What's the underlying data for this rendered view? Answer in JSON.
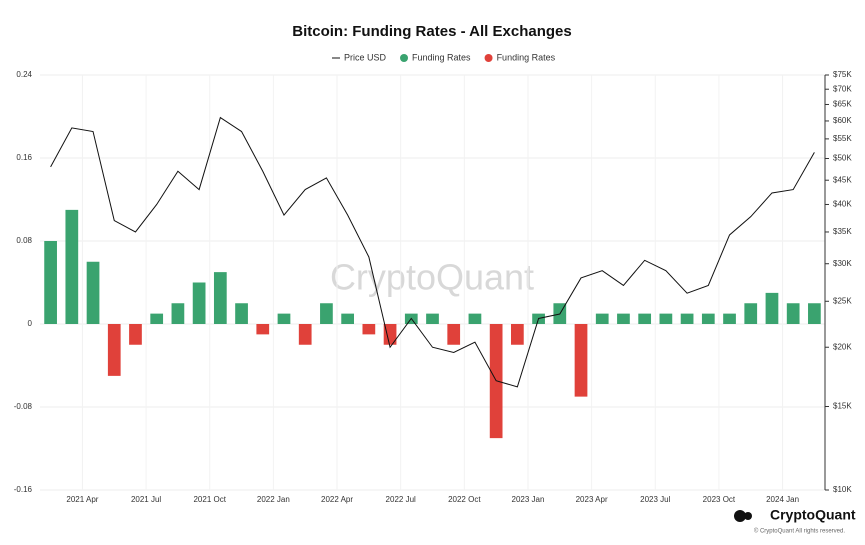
{
  "chart_data": {
    "type": "bar-line",
    "title": "Bitcoin: Funding Rates - All Exchanges",
    "watermark": "CryptoQuant",
    "footer": {
      "brand": "CryptoQuant",
      "copyright": "© CryptoQuant All rights reserved."
    },
    "x": [
      "2021-02",
      "2021-03",
      "2021-04",
      "2021-05",
      "2021-06",
      "2021-07",
      "2021-08",
      "2021-09",
      "2021-10",
      "2021-11",
      "2021-12",
      "2022-01",
      "2022-02",
      "2022-03",
      "2022-04",
      "2022-05",
      "2022-06",
      "2022-07",
      "2022-08",
      "2022-09",
      "2022-10",
      "2022-11",
      "2022-12",
      "2023-01",
      "2023-02",
      "2023-03",
      "2023-04",
      "2023-05",
      "2023-06",
      "2023-07",
      "2023-08",
      "2023-09",
      "2023-10",
      "2023-11",
      "2023-12",
      "2024-01",
      "2024-02"
    ],
    "xticks": [
      {
        "value": "2021-04",
        "label": "2021 Apr"
      },
      {
        "value": "2021-07",
        "label": "2021 Jul"
      },
      {
        "value": "2021-10",
        "label": "2021 Oct"
      },
      {
        "value": "2022-01",
        "label": "2022 Jan"
      },
      {
        "value": "2022-04",
        "label": "2022 Apr"
      },
      {
        "value": "2022-07",
        "label": "2022 Jul"
      },
      {
        "value": "2022-10",
        "label": "2022 Oct"
      },
      {
        "value": "2023-01",
        "label": "2023 Jan"
      },
      {
        "value": "2023-04",
        "label": "2023 Apr"
      },
      {
        "value": "2023-07",
        "label": "2023 Jul"
      },
      {
        "value": "2023-10",
        "label": "2023 Oct"
      },
      {
        "value": "2024-01",
        "label": "2024 Jan"
      }
    ],
    "series": [
      {
        "name": "Price USD",
        "color": "#111111",
        "kind": "line",
        "axis": "y2",
        "values": [
          48000,
          58000,
          57000,
          37000,
          35000,
          40000,
          47000,
          43000,
          61000,
          57000,
          47000,
          38000,
          43000,
          45500,
          38000,
          31000,
          20000,
          23000,
          20000,
          19500,
          20500,
          17000,
          16500,
          23000,
          23500,
          28000,
          29000,
          27000,
          30500,
          29000,
          26000,
          27000,
          34500,
          37700,
          42300,
          43000,
          51500
        ]
      },
      {
        "name": "Funding Rates",
        "color": "#3aa36f",
        "kind": "bar",
        "values": [
          0.08,
          0.11,
          0.06,
          null,
          null,
          0.01,
          0.02,
          0.04,
          0.05,
          0.02,
          null,
          0.01,
          null,
          0.02,
          0.01,
          null,
          null,
          0.01,
          0.01,
          null,
          0.01,
          null,
          null,
          0.01,
          0.02,
          null,
          0.01,
          0.01,
          0.01,
          0.01,
          0.01,
          0.01,
          0.01,
          0.02,
          0.03,
          0.02,
          0.02
        ]
      },
      {
        "name": "Funding Rates",
        "color": "#e0413a",
        "kind": "bar",
        "values": [
          null,
          null,
          null,
          -0.05,
          -0.02,
          null,
          null,
          null,
          null,
          null,
          -0.01,
          null,
          -0.02,
          null,
          null,
          -0.01,
          -0.02,
          null,
          null,
          -0.02,
          null,
          -0.11,
          -0.02,
          null,
          null,
          -0.07,
          null,
          null,
          null,
          null,
          null,
          null,
          null,
          null,
          null,
          null,
          null
        ]
      }
    ],
    "ylim": [
      -0.16,
      0.24
    ],
    "yticks": [
      -0.16,
      -0.08,
      0,
      0.08,
      0.16,
      0.24
    ],
    "y2lim": [
      10000,
      75000
    ],
    "y2log": true,
    "y2ticks": [
      {
        "value": 10000,
        "label": "$10K"
      },
      {
        "value": 15000,
        "label": "$15K"
      },
      {
        "value": 20000,
        "label": "$20K"
      },
      {
        "value": 25000,
        "label": "$25K"
      },
      {
        "value": 30000,
        "label": "$30K"
      },
      {
        "value": 35000,
        "label": "$35K"
      },
      {
        "value": 40000,
        "label": "$40K"
      },
      {
        "value": 45000,
        "label": "$45K"
      },
      {
        "value": 50000,
        "label": "$50K"
      },
      {
        "value": 55000,
        "label": "$55K"
      },
      {
        "value": 60000,
        "label": "$60K"
      },
      {
        "value": 65000,
        "label": "$65K"
      },
      {
        "value": 70000,
        "label": "$70K"
      },
      {
        "value": 75000,
        "label": "$75K"
      }
    ],
    "grid": true
  }
}
